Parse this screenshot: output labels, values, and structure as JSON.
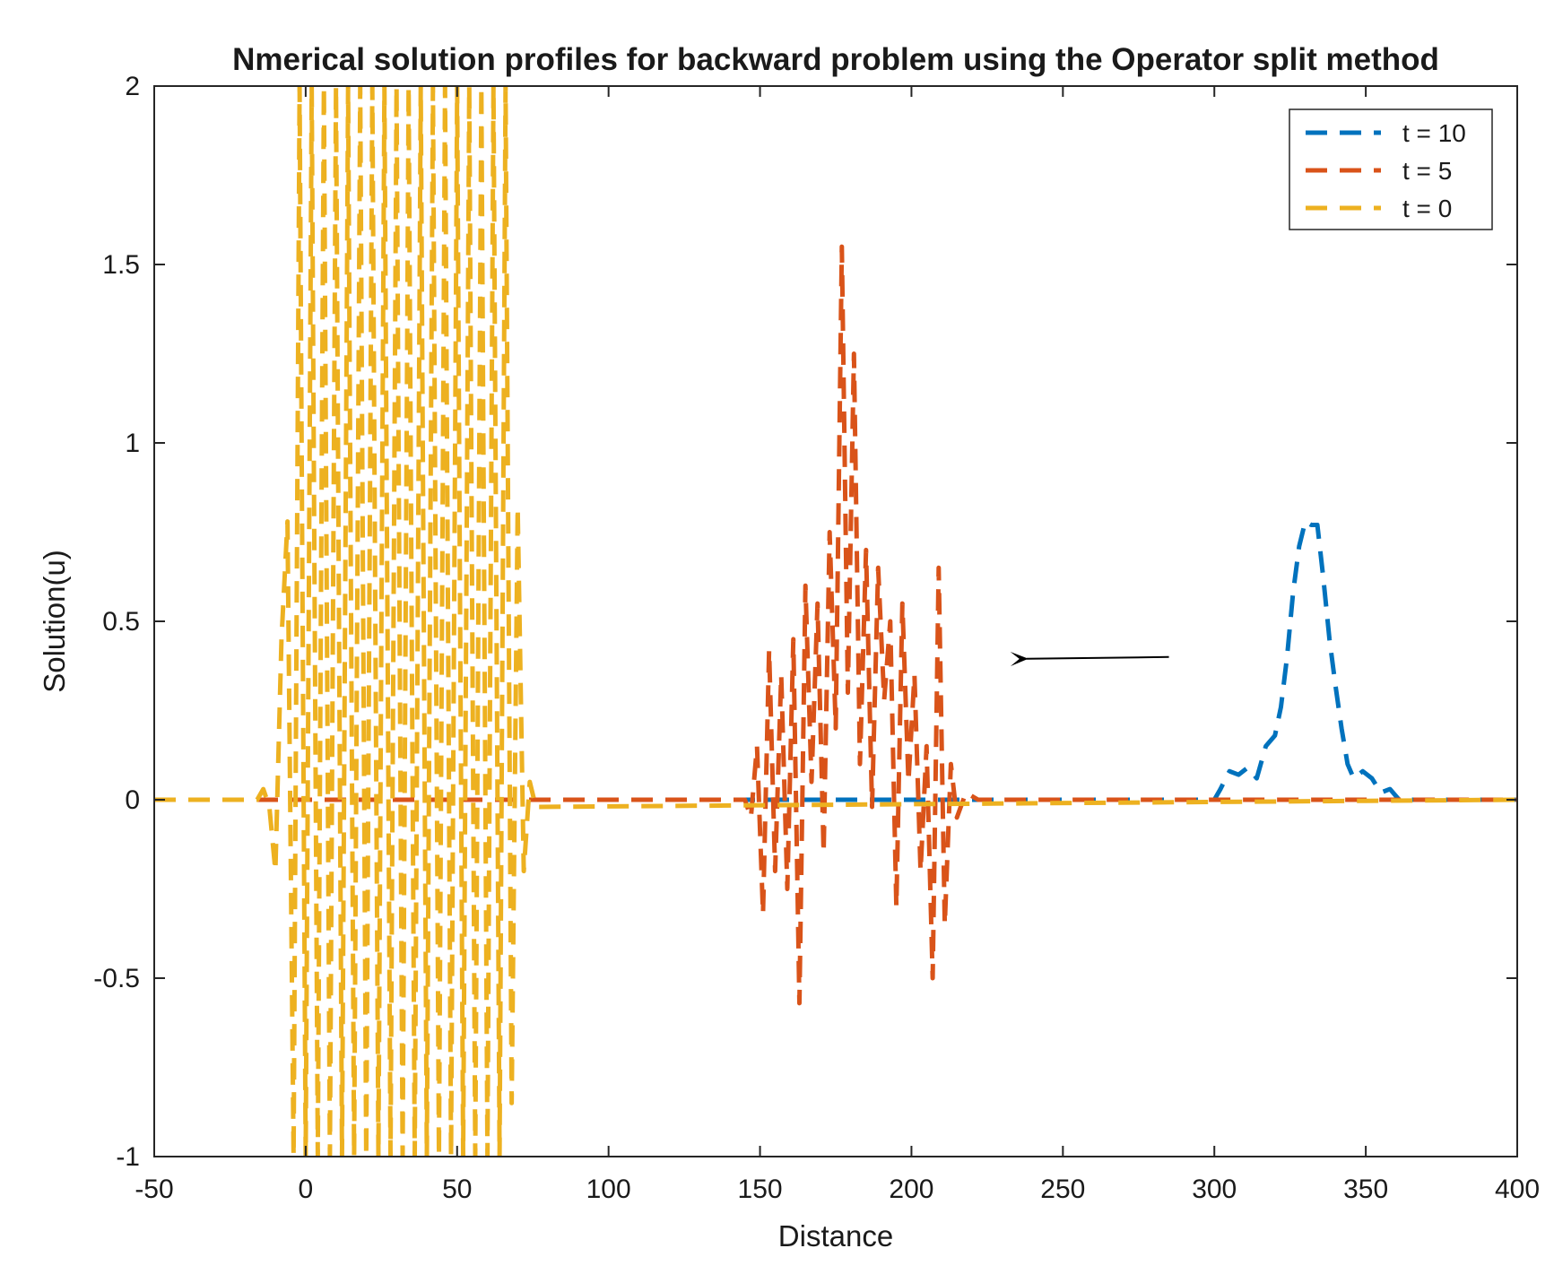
{
  "chart_data": {
    "type": "line",
    "title": "Nmerical solution profiles for backward problem using the Operator split method",
    "xlabel": "Distance",
    "ylabel": "Solution(u)",
    "xlim": [
      -50,
      400
    ],
    "ylim": [
      -1,
      2
    ],
    "x_ticks": [
      -50,
      0,
      50,
      100,
      150,
      200,
      250,
      300,
      350,
      400
    ],
    "y_ticks": [
      -1,
      -0.5,
      0,
      0.5,
      1,
      1.5,
      2
    ],
    "grid": false,
    "legend_position": "top-right",
    "line_style": "dashed",
    "series": [
      {
        "name": "t = 10",
        "color": "#0072BD",
        "x": [
          -50,
          300,
          302,
          305,
          308,
          311,
          314,
          317,
          320,
          322,
          324,
          326,
          328,
          330,
          332,
          334,
          336,
          338,
          340,
          342,
          344,
          346,
          349,
          352,
          355,
          358,
          361,
          400
        ],
        "y": [
          0,
          0,
          0.03,
          0.08,
          0.07,
          0.09,
          0.06,
          0.15,
          0.18,
          0.26,
          0.4,
          0.58,
          0.71,
          0.78,
          0.77,
          0.77,
          0.62,
          0.45,
          0.32,
          0.2,
          0.1,
          0.06,
          0.08,
          0.06,
          0.02,
          0.03,
          0,
          0
        ]
      },
      {
        "name": "t = 5",
        "color": "#D95319",
        "x": [
          -50,
          145,
          147,
          149,
          151,
          153,
          155,
          157,
          159,
          161,
          163,
          165,
          167,
          169,
          171,
          173,
          175,
          177,
          179,
          181,
          183,
          185,
          187,
          189,
          191,
          193,
          195,
          197,
          199,
          201,
          203,
          205,
          207,
          209,
          211,
          213,
          215,
          218,
          222,
          400
        ],
        "y": [
          0,
          0,
          -0.05,
          0.15,
          -0.32,
          0.42,
          -0.2,
          0.35,
          -0.25,
          0.45,
          -0.57,
          0.6,
          0.05,
          0.55,
          -0.15,
          0.75,
          0.2,
          1.55,
          0.3,
          1.25,
          0.1,
          0.7,
          -0.02,
          0.65,
          0.28,
          0.5,
          -0.3,
          0.55,
          0.05,
          0.35,
          -0.2,
          0.15,
          -0.5,
          0.65,
          -0.35,
          0.1,
          -0.05,
          0.02,
          0,
          0
        ]
      },
      {
        "name": "t = 0",
        "color": "#EDB120",
        "x": [
          -50,
          -16,
          -14,
          -12,
          -10,
          -8,
          -6,
          -4,
          -2,
          0,
          2,
          4,
          6,
          8,
          10,
          12,
          14,
          16,
          18,
          20,
          22,
          24,
          26,
          28,
          30,
          32,
          34,
          36,
          38,
          40,
          42,
          44,
          46,
          48,
          50,
          52,
          54,
          56,
          58,
          60,
          62,
          64,
          66,
          68,
          70,
          72,
          74,
          76,
          400
        ],
        "y": [
          0,
          0,
          0.03,
          -0.02,
          -0.2,
          0.45,
          0.78,
          -1.0,
          2.0,
          -1.0,
          2.0,
          -1.0,
          2.0,
          -1.0,
          2.0,
          -1.0,
          2.0,
          -1.0,
          2.0,
          -1.0,
          2.0,
          -1.0,
          2.0,
          -1.0,
          2.0,
          -1.0,
          2.0,
          -1.0,
          2.0,
          -1.0,
          2.0,
          -1.0,
          2.0,
          -1.0,
          2.0,
          -1.0,
          2.0,
          -1.0,
          2.0,
          -1.0,
          2.0,
          -1.0,
          2.0,
          -0.85,
          0.82,
          -0.2,
          0.05,
          -0.02,
          0
        ]
      }
    ],
    "annotations": [
      {
        "type": "arrow",
        "from": [
          285,
          0.4
        ],
        "to": [
          238,
          0.395
        ],
        "color": "#000000"
      }
    ]
  }
}
